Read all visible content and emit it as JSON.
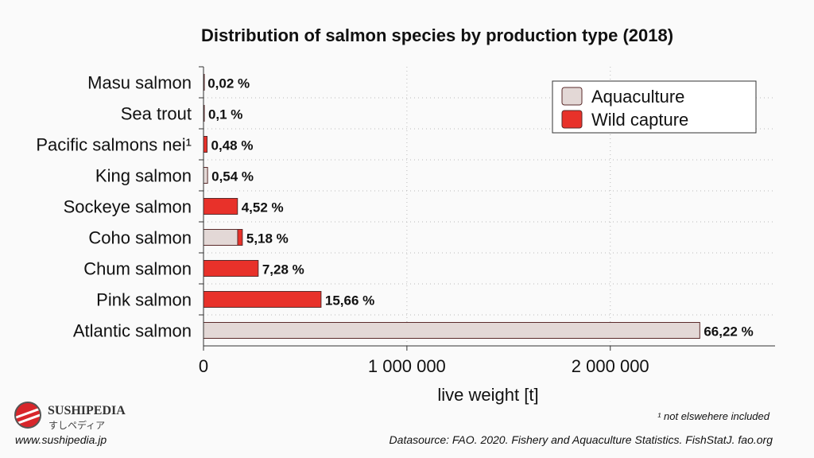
{
  "chart_data": {
    "type": "bar",
    "orientation": "horizontal",
    "stacked": true,
    "title": "Distribution of salmon species by production type (2018)",
    "xlabel": "live weight [t]",
    "ylabel": "",
    "xlim": [
      0,
      2810000
    ],
    "xticks": [
      0,
      1000000,
      2000000
    ],
    "xtick_labels": [
      "0",
      "1 000 000",
      "2 000 000"
    ],
    "grid": true,
    "legend_position": "top-right",
    "categories": [
      "Masu salmon",
      "Sea trout",
      "Pacific salmons nei¹",
      "King salmon",
      "Sockeye salmon",
      "Coho salmon",
      "Chum salmon",
      "Pink salmon",
      "Atlantic salmon"
    ],
    "data_labels": [
      "0,02 %",
      "0,1 %",
      "0,48 %",
      "0,54 %",
      "4,52 %",
      "5,18 %",
      "7,28 %",
      "15,66 %",
      "66,22 %"
    ],
    "series": [
      {
        "name": "Aquaculture",
        "color": "#e3d8d6",
        "values": [
          0,
          3700,
          0,
          20000,
          0,
          168000,
          0,
          0,
          2440000
        ]
      },
      {
        "name": "Wild capture",
        "color": "#e8312a",
        "values": [
          740,
          0,
          17700,
          0,
          167000,
          23000,
          269000,
          578000,
          0
        ]
      }
    ]
  },
  "footnote": "¹ not elswehere included",
  "source": "Datasource: FAO. 2020. Fishery and Aquaculture Statistics. FishStatJ. fao.org",
  "brand": {
    "name": "SUSHIPEDIA",
    "subtitle": "すしペディア",
    "url": "www.sushipedia.jp"
  }
}
